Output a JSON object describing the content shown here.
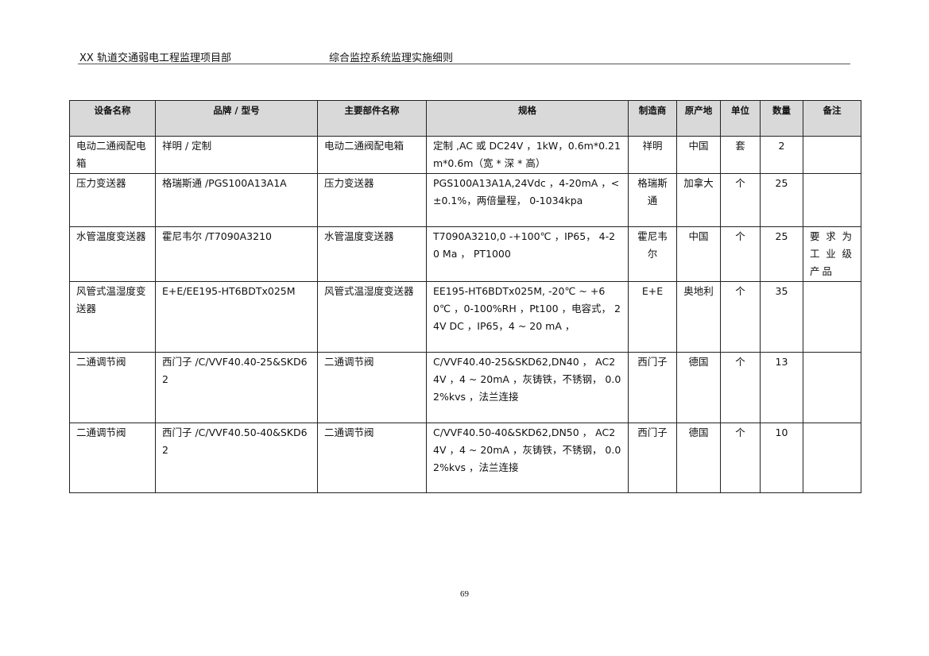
{
  "header": {
    "left": "XX 轨道交通弱电工程监理项目部",
    "center": "综合监控系统监理实施细则"
  },
  "table": {
    "columns": [
      "设备名称",
      "品牌 / 型号",
      "主要部件名称",
      "规格",
      "制造商",
      "原产地",
      "单位",
      "数量",
      "备注"
    ],
    "rows": [
      [
        "电动二通阀配电箱",
        "祥明 / 定制",
        "电动二通阀配电箱",
        "定制 ,AC 或 DC24V ，1kW，0.6m*0.21m*0.6m（宽 * 深 * 高）",
        "祥明",
        "中国",
        "套",
        "2",
        ""
      ],
      [
        "压力变送器",
        "格瑞斯通 /PGS100A13A1A",
        "压力变送器",
        "PGS100A13A1A,24Vdc ，4-20mA ，< ±0.1%，两倍量程， 0-1034kpa",
        "格瑞斯通",
        "加拿大",
        "个",
        "25",
        ""
      ],
      [
        "水管温度变送器",
        "霍尼韦尔 /T7090A3210",
        "水管温度变送器",
        "T7090A3210,0 -+100℃ ，IP65， 4-20 Ma ， PT1000",
        "霍尼韦尔",
        "中国",
        "个",
        "25",
        "要求为工业级产品"
      ],
      [
        "风管式温湿度变送器",
        "E+E/EE195-HT6BDTx025M",
        "风管式温湿度变送器",
        "EE195-HT6BDTx025M, -20℃ ~ +60℃ ，0-100%RH ，Pt100 ，电容式， 24V DC ，IP65，4 ~ 20 mA ，",
        "E+E",
        "奥地利",
        "个",
        "35",
        ""
      ],
      [
        "二通调节阀",
        "西门子 /C/VVF40.40-25&SKD62",
        "二通调节阀",
        "C/VVF40.40-25&SKD62,DN40 ， AC24V ，4 ~ 20mA ，灰铸铁，不锈钢， 0.02%kvs ，法兰连接",
        "西门子",
        "德国",
        "个",
        "13",
        ""
      ],
      [
        "二通调节阀",
        "西门子 /C/VVF40.50-40&SKD62",
        "二通调节阀",
        "C/VVF40.50-40&SKD62,DN50 ， AC24V ，4 ~ 20mA ，灰铸铁，不锈钢， 0.02%kvs ，法兰连接",
        "西门子",
        "德国",
        "个",
        "10",
        ""
      ]
    ]
  },
  "footer": {
    "page_number": "69"
  }
}
